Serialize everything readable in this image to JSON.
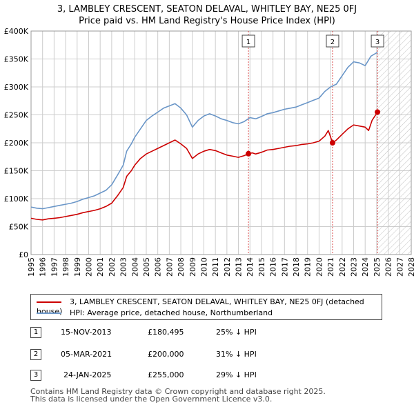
{
  "title_line1": "3, LAMBLEY CRESCENT, SEATON DELAVAL, WHITLEY BAY, NE25 0FJ",
  "title_line2": "Price paid vs. HM Land Registry's House Price Index (HPI)",
  "colors": {
    "red": "#cc0000",
    "blue": "#6a96c8",
    "grid": "#cccccc",
    "hatch": "#bbbbbb",
    "shade": "#e8eef6"
  },
  "chart_data": {
    "type": "line",
    "x_range": [
      1995,
      2028
    ],
    "ylim": [
      0,
      400000
    ],
    "y_ticks": [
      {
        "value": 0,
        "label": "£0"
      },
      {
        "value": 50000,
        "label": "£50K"
      },
      {
        "value": 100000,
        "label": "£100K"
      },
      {
        "value": 150000,
        "label": "£150K"
      },
      {
        "value": 200000,
        "label": "£200K"
      },
      {
        "value": 250000,
        "label": "£250K"
      },
      {
        "value": 300000,
        "label": "£300K"
      },
      {
        "value": 350000,
        "label": "£350K"
      },
      {
        "value": 400000,
        "label": "£400K"
      }
    ],
    "x_ticks": [
      "1995",
      "1996",
      "1997",
      "1998",
      "1999",
      "2000",
      "2001",
      "2002",
      "2003",
      "2004",
      "2005",
      "2006",
      "2007",
      "2008",
      "2009",
      "2010",
      "2011",
      "2012",
      "2013",
      "2014",
      "2015",
      "2016",
      "2017",
      "2018",
      "2019",
      "2020",
      "2021",
      "2022",
      "2023",
      "2024",
      "2025",
      "2026",
      "2027",
      "2028"
    ],
    "future_shade_start": 2025.07,
    "series": [
      {
        "name": "3, LAMBLEY CRESCENT, SEATON DELAVAL, WHITLEY BAY, NE25 0FJ (detached house)",
        "color": "#cc0000",
        "points": [
          [
            1995.0,
            65000
          ],
          [
            1995.5,
            63000
          ],
          [
            1996.0,
            62000
          ],
          [
            1996.5,
            64000
          ],
          [
            1997.0,
            65000
          ],
          [
            1997.5,
            66000
          ],
          [
            1998.0,
            68000
          ],
          [
            1998.5,
            70000
          ],
          [
            1999.0,
            72000
          ],
          [
            1999.5,
            75000
          ],
          [
            2000.0,
            77000
          ],
          [
            2000.5,
            79000
          ],
          [
            2001.0,
            82000
          ],
          [
            2001.5,
            86000
          ],
          [
            2002.0,
            92000
          ],
          [
            2002.5,
            105000
          ],
          [
            2003.0,
            120000
          ],
          [
            2003.3,
            140000
          ],
          [
            2003.7,
            150000
          ],
          [
            2004.0,
            160000
          ],
          [
            2004.5,
            172000
          ],
          [
            2005.0,
            180000
          ],
          [
            2005.5,
            185000
          ],
          [
            2006.0,
            190000
          ],
          [
            2006.5,
            195000
          ],
          [
            2007.0,
            200000
          ],
          [
            2007.5,
            205000
          ],
          [
            2008.0,
            198000
          ],
          [
            2008.5,
            190000
          ],
          [
            2009.0,
            172000
          ],
          [
            2009.5,
            180000
          ],
          [
            2010.0,
            185000
          ],
          [
            2010.5,
            188000
          ],
          [
            2011.0,
            186000
          ],
          [
            2011.5,
            182000
          ],
          [
            2012.0,
            178000
          ],
          [
            2012.5,
            176000
          ],
          [
            2013.0,
            174000
          ],
          [
            2013.5,
            177000
          ],
          [
            2013.87,
            180495
          ],
          [
            2014.2,
            182000
          ],
          [
            2014.5,
            180000
          ],
          [
            2015.0,
            183000
          ],
          [
            2015.5,
            187000
          ],
          [
            2016.0,
            188000
          ],
          [
            2016.5,
            190000
          ],
          [
            2017.0,
            192000
          ],
          [
            2017.5,
            194000
          ],
          [
            2018.0,
            195000
          ],
          [
            2018.5,
            197000
          ],
          [
            2019.0,
            198000
          ],
          [
            2019.5,
            200000
          ],
          [
            2020.0,
            203000
          ],
          [
            2020.5,
            212000
          ],
          [
            2020.8,
            222000
          ],
          [
            2021.17,
            200000
          ],
          [
            2021.5,
            205000
          ],
          [
            2022.0,
            215000
          ],
          [
            2022.5,
            225000
          ],
          [
            2023.0,
            232000
          ],
          [
            2023.5,
            230000
          ],
          [
            2024.0,
            228000
          ],
          [
            2024.3,
            222000
          ],
          [
            2024.6,
            240000
          ],
          [
            2025.07,
            255000
          ]
        ]
      },
      {
        "name": "HPI: Average price, detached house, Northumberland",
        "color": "#6a96c8",
        "points": [
          [
            1995.0,
            85000
          ],
          [
            1995.5,
            83000
          ],
          [
            1996.0,
            82000
          ],
          [
            1996.5,
            84000
          ],
          [
            1997.0,
            86000
          ],
          [
            1997.5,
            88000
          ],
          [
            1998.0,
            90000
          ],
          [
            1998.5,
            92000
          ],
          [
            1999.0,
            95000
          ],
          [
            1999.5,
            99000
          ],
          [
            2000.0,
            102000
          ],
          [
            2000.5,
            105000
          ],
          [
            2001.0,
            110000
          ],
          [
            2001.5,
            115000
          ],
          [
            2002.0,
            125000
          ],
          [
            2002.5,
            142000
          ],
          [
            2003.0,
            160000
          ],
          [
            2003.3,
            185000
          ],
          [
            2003.7,
            198000
          ],
          [
            2004.0,
            210000
          ],
          [
            2004.5,
            225000
          ],
          [
            2005.0,
            240000
          ],
          [
            2005.5,
            248000
          ],
          [
            2006.0,
            255000
          ],
          [
            2006.5,
            262000
          ],
          [
            2007.0,
            266000
          ],
          [
            2007.5,
            270000
          ],
          [
            2008.0,
            262000
          ],
          [
            2008.5,
            250000
          ],
          [
            2009.0,
            228000
          ],
          [
            2009.5,
            240000
          ],
          [
            2010.0,
            248000
          ],
          [
            2010.5,
            252000
          ],
          [
            2011.0,
            248000
          ],
          [
            2011.5,
            243000
          ],
          [
            2012.0,
            240000
          ],
          [
            2012.5,
            236000
          ],
          [
            2013.0,
            234000
          ],
          [
            2013.5,
            238000
          ],
          [
            2014.0,
            245000
          ],
          [
            2014.5,
            243000
          ],
          [
            2015.0,
            247000
          ],
          [
            2015.5,
            252000
          ],
          [
            2016.0,
            254000
          ],
          [
            2016.5,
            257000
          ],
          [
            2017.0,
            260000
          ],
          [
            2017.5,
            262000
          ],
          [
            2018.0,
            264000
          ],
          [
            2018.5,
            268000
          ],
          [
            2019.0,
            272000
          ],
          [
            2019.5,
            276000
          ],
          [
            2020.0,
            280000
          ],
          [
            2020.5,
            292000
          ],
          [
            2021.0,
            300000
          ],
          [
            2021.5,
            305000
          ],
          [
            2022.0,
            320000
          ],
          [
            2022.5,
            335000
          ],
          [
            2023.0,
            345000
          ],
          [
            2023.5,
            343000
          ],
          [
            2024.0,
            338000
          ],
          [
            2024.5,
            355000
          ],
          [
            2025.07,
            362000
          ]
        ]
      }
    ],
    "markers": [
      {
        "label": "1",
        "x": 2013.87,
        "value": 180495
      },
      {
        "label": "2",
        "x": 2021.17,
        "value": 200000
      },
      {
        "label": "3",
        "x": 2025.07,
        "value": 255000
      }
    ]
  },
  "legend": {
    "red_label": "3, LAMBLEY CRESCENT, SEATON DELAVAL, WHITLEY BAY, NE25 0FJ (detached house)",
    "blue_label": "HPI: Average price, detached house, Northumberland"
  },
  "transactions": [
    {
      "num": "1",
      "date": "15-NOV-2013",
      "price": "£180,495",
      "pct": "25% ↓ HPI"
    },
    {
      "num": "2",
      "date": "05-MAR-2021",
      "price": "£200,000",
      "pct": "31% ↓ HPI"
    },
    {
      "num": "3",
      "date": "24-JAN-2025",
      "price": "£255,000",
      "pct": "29% ↓ HPI"
    }
  ],
  "footer_line1": "Contains HM Land Registry data © Crown copyright and database right 2025.",
  "footer_line2": "This data is licensed under the Open Government Licence v3.0."
}
